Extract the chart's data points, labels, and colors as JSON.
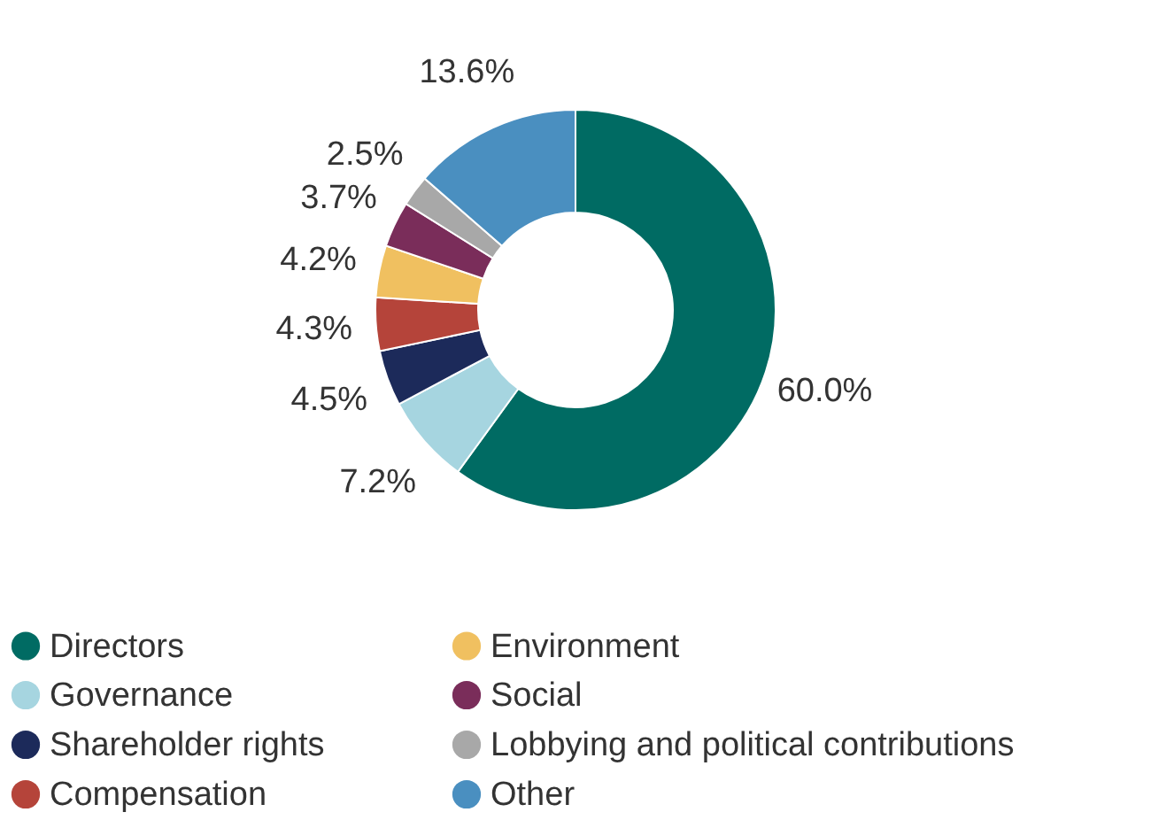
{
  "chart_data": {
    "type": "donut",
    "categories": [
      "Directors",
      "Governance",
      "Shareholder rights",
      "Compensation",
      "Environment",
      "Social",
      "Lobbying and political contributions",
      "Other"
    ],
    "values": [
      60.0,
      7.2,
      4.5,
      4.3,
      4.2,
      3.7,
      2.5,
      13.6
    ],
    "value_labels": [
      "60.0%",
      "7.2%",
      "4.5%",
      "4.3%",
      "4.2%",
      "3.7%",
      "2.5%",
      "13.6%"
    ],
    "colors": [
      "#006b63",
      "#a6d5e0",
      "#1c2a5a",
      "#b5443a",
      "#f0c060",
      "#7a2d5a",
      "#a8a8a8",
      "#4a8fc0"
    ],
    "legend": "bottom"
  }
}
